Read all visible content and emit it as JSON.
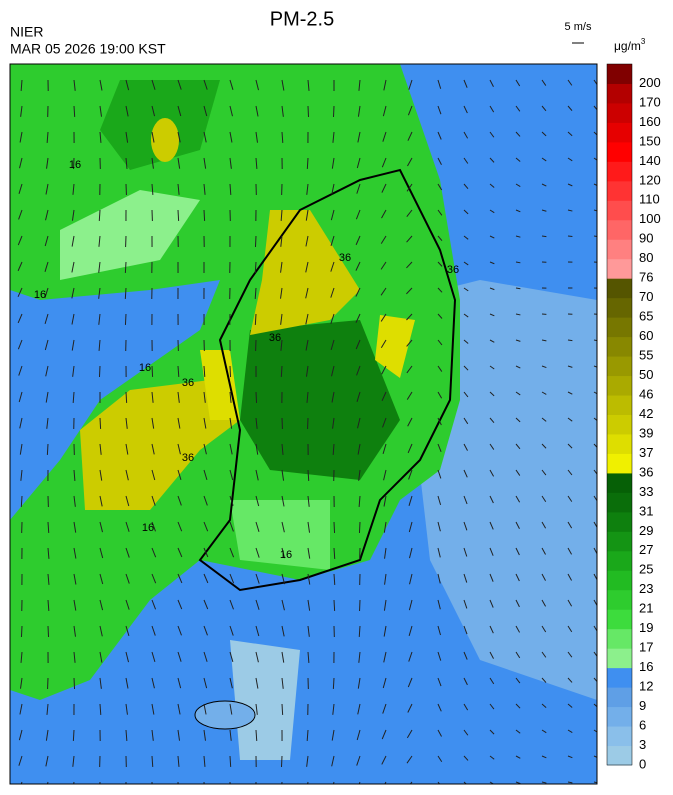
{
  "header": {
    "title": "PM-2.5",
    "agency": "NIER",
    "datetime": "MAR 05 2026 19:00 KST",
    "wind_scale": "5 m/s"
  },
  "legend": {
    "unit": "μg/m",
    "unit_power": "3",
    "levels": [
      "0",
      "3",
      "6",
      "9",
      "12",
      "16",
      "17",
      "19",
      "21",
      "23",
      "25",
      "27",
      "29",
      "31",
      "33",
      "36",
      "37",
      "39",
      "42",
      "46",
      "50",
      "55",
      "60",
      "65",
      "70",
      "76",
      "80",
      "90",
      "100",
      "110",
      "120",
      "140",
      "150",
      "160",
      "170",
      "200"
    ],
    "colors": [
      "#9ccbe6",
      "#8abfea",
      "#73afea",
      "#5f9fe6",
      "#3f8ff0",
      "#8cf08c",
      "#66e866",
      "#3ddc3d",
      "#2ecc2e",
      "#22bb22",
      "#1aa81a",
      "#149414",
      "#0e800e",
      "#0a6e0a",
      "#066006",
      "#f0f000",
      "#dede00",
      "#cccc00",
      "#bcbc00",
      "#aaaa00",
      "#999900",
      "#888800",
      "#777700",
      "#666600",
      "#555500",
      "#ff9999",
      "#ff8080",
      "#ff6666",
      "#ff4d4d",
      "#ff3333",
      "#ff1a1a",
      "#ff0000",
      "#e60000",
      "#cc0000",
      "#b30000",
      "#800000"
    ]
  },
  "contour_labels": [
    "16",
    "16",
    "16",
    "36",
    "36",
    "36",
    "36",
    "16",
    "16",
    "36"
  ]
}
